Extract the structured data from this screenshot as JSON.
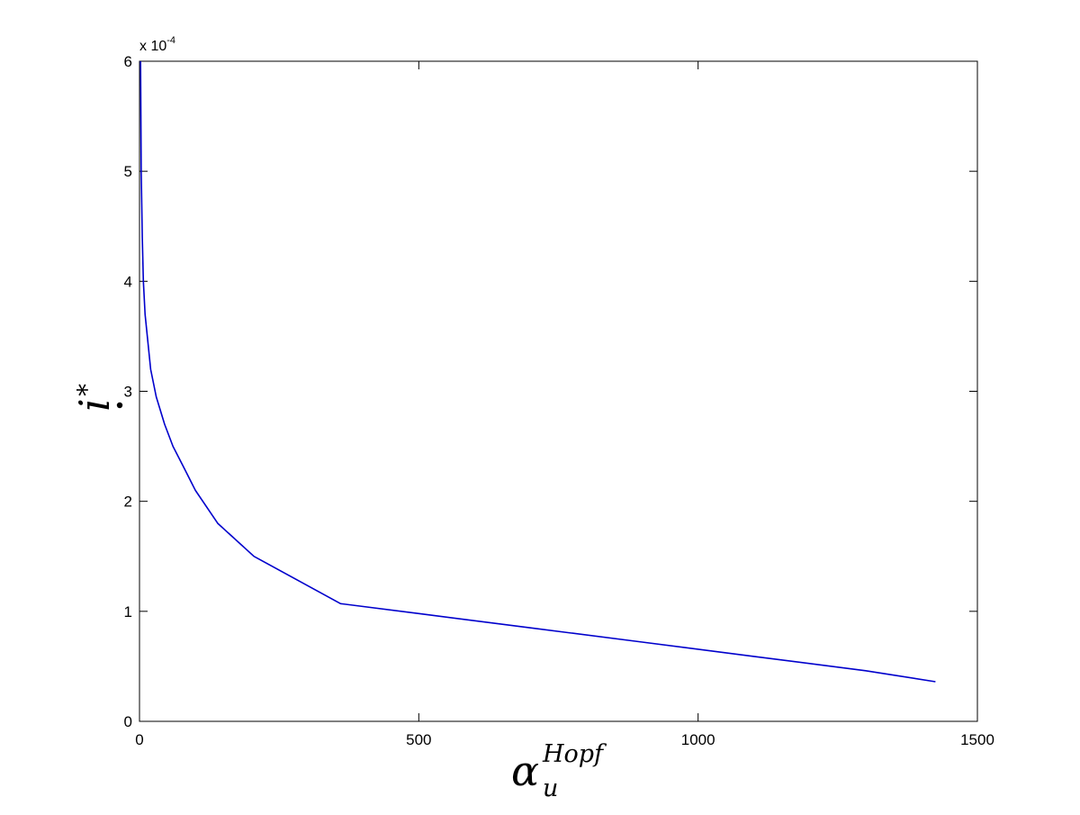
{
  "chart_data": {
    "type": "line",
    "title": "",
    "xlabel": {
      "symbol": "α",
      "subscript": "u",
      "superscript": "Hopf"
    },
    "ylabel": {
      "symbol": "i",
      "accent": "dot",
      "superscript": "*"
    },
    "xlim": [
      0,
      1500
    ],
    "ylim": [
      0,
      6
    ],
    "y_multiplier": {
      "prefix": "x 10",
      "exponent": "-4"
    },
    "x_ticks": [
      0,
      500,
      1000,
      1500
    ],
    "x_tick_labels": [
      "0",
      "500",
      "1000",
      "1500"
    ],
    "y_ticks": [
      0,
      1,
      2,
      3,
      4,
      5,
      6
    ],
    "y_tick_labels": [
      "0",
      "1",
      "2",
      "3",
      "4",
      "5",
      "6"
    ],
    "grid": false,
    "line_color": "#0000cc",
    "series": [
      {
        "x": [
          2,
          3,
          4,
          5,
          7,
          10,
          15,
          20,
          30,
          45,
          60,
          80,
          100,
          140,
          205,
          360,
          500,
          700,
          900,
          1100,
          1300,
          1425
        ],
        "y": [
          6.0,
          5.0,
          4.7,
          4.4,
          4.0,
          3.7,
          3.45,
          3.2,
          2.95,
          2.7,
          2.5,
          2.3,
          2.1,
          1.8,
          1.5,
          1.07,
          0.98,
          0.85,
          0.72,
          0.59,
          0.46,
          0.36
        ]
      }
    ]
  }
}
